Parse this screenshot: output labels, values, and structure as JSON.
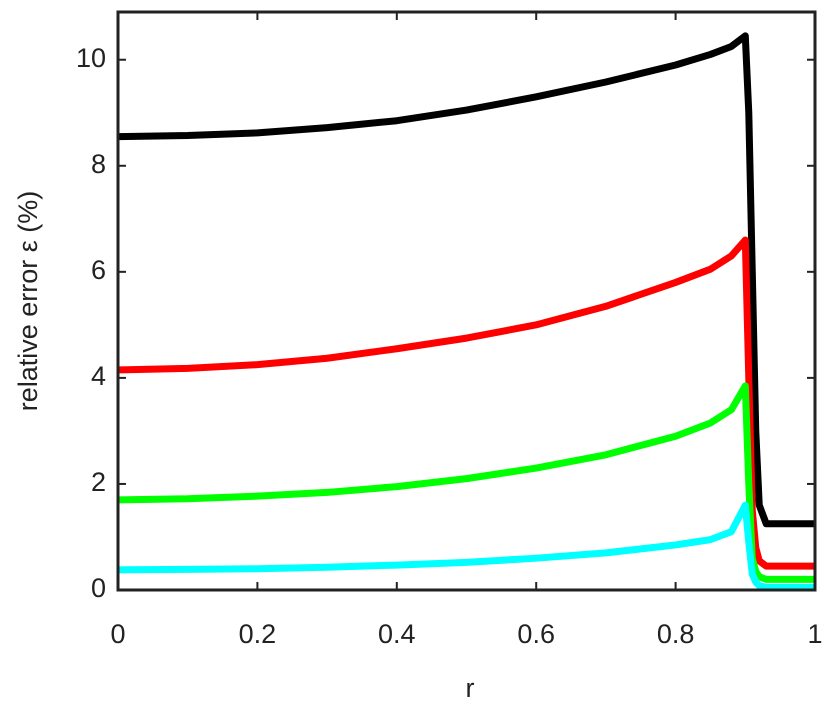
{
  "chart_data": {
    "type": "line",
    "xlabel": "r",
    "ylabel": "relative error ε (%)",
    "x": [
      0,
      0.1,
      0.2,
      0.3,
      0.4,
      0.5,
      0.6,
      0.7,
      0.8,
      0.85,
      0.88,
      0.9,
      0.905,
      0.91,
      0.915,
      0.92,
      0.93,
      1
    ],
    "series": [
      {
        "color": "#000000",
        "values": [
          8.55,
          8.57,
          8.62,
          8.72,
          8.85,
          9.05,
          9.3,
          9.58,
          9.9,
          10.1,
          10.25,
          10.45,
          9,
          6,
          3,
          1.6,
          1.25,
          1.25
        ]
      },
      {
        "color": "#ff0000",
        "values": [
          4.15,
          4.18,
          4.25,
          4.37,
          4.55,
          4.75,
          5.0,
          5.35,
          5.8,
          6.05,
          6.3,
          6.6,
          4.0,
          1.5,
          0.8,
          0.55,
          0.45,
          0.45
        ]
      },
      {
        "color": "#00ff00",
        "values": [
          1.7,
          1.72,
          1.77,
          1.84,
          1.95,
          2.1,
          2.3,
          2.55,
          2.9,
          3.15,
          3.4,
          3.85,
          2.0,
          0.6,
          0.35,
          0.25,
          0.2,
          0.2
        ]
      },
      {
        "color": "#00ffff",
        "values": [
          0.38,
          0.39,
          0.4,
          0.43,
          0.47,
          0.52,
          0.6,
          0.7,
          0.85,
          0.95,
          1.1,
          1.6,
          0.9,
          0.3,
          0.15,
          0.08,
          0.05,
          0.05
        ]
      }
    ],
    "xlim": [
      0,
      1
    ],
    "xticks": [
      0,
      0.2,
      0.4,
      0.6,
      0.8,
      1
    ],
    "ylim": [
      0,
      10.9
    ],
    "yticks": [
      0,
      2,
      4,
      6,
      8,
      10
    ],
    "grid": false
  }
}
